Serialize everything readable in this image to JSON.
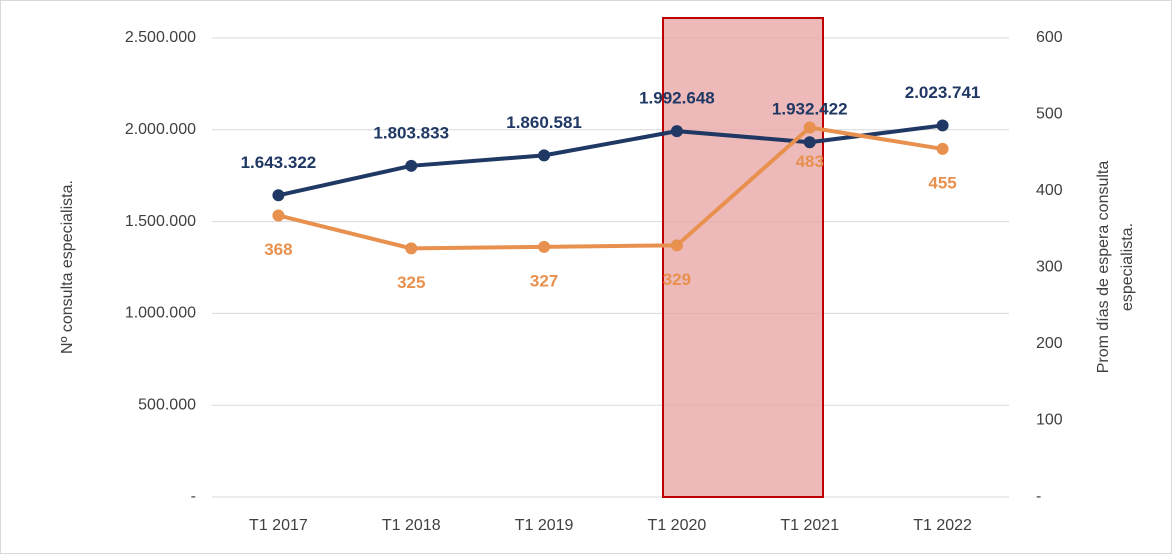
{
  "chart_data": {
    "type": "line",
    "categories": [
      "T1 2017",
      "T1 2018",
      "T1 2019",
      "T1 2020",
      "T1 2021",
      "T1 2022"
    ],
    "series": [
      {
        "name": "Nº consulta especialista.",
        "color": "#203864",
        "axis": "y",
        "values": [
          1643322,
          1803833,
          1860581,
          1992648,
          1932422,
          2023741
        ],
        "value_labels": [
          "1.643.322",
          "1.803.833",
          "1.860.581",
          "1.992.648",
          "1.932.422",
          "2.023.741"
        ]
      },
      {
        "name": "Prom días de espera  consulta especialista.",
        "color": "#e8914f",
        "axis": "y2",
        "values": [
          368,
          325,
          327,
          329,
          483,
          455
        ]
      }
    ],
    "ylabel": "Nº consulta especialista.",
    "y2label": [
      "Prom días de espera  consulta",
      "especialista."
    ],
    "ylim": [
      0,
      2500000
    ],
    "yticks": [
      {
        "value": 0,
        "label": "-"
      },
      {
        "value": 500000,
        "label": "500.000"
      },
      {
        "value": 1000000,
        "label": "1.000.000"
      },
      {
        "value": 1500000,
        "label": "1.500.000"
      },
      {
        "value": 2000000,
        "label": "2.000.000"
      },
      {
        "value": 2500000,
        "label": "2.500.000"
      }
    ],
    "y2lim": [
      0,
      600
    ],
    "y2ticks": [
      {
        "value": 0,
        "label": "-"
      },
      100,
      200,
      300,
      400,
      500,
      600
    ],
    "grid": true
  }
}
